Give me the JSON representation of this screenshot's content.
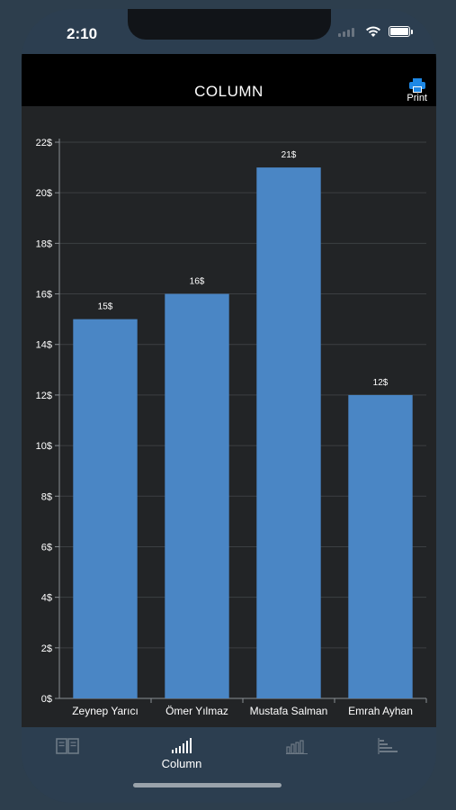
{
  "status_bar": {
    "time": "2:10"
  },
  "nav": {
    "title": "COLUMN",
    "print_label": "Print"
  },
  "colors": {
    "bar": "#4a86c5",
    "grid": "#3c3f42",
    "text": "#ffffff",
    "nav_bg": "#000000",
    "tab_bg": "#2c3e50"
  },
  "chart_data": {
    "type": "bar",
    "categories": [
      "Zeynep Yarıcı",
      "Ömer Yılmaz",
      "Mustafa Salman",
      "Emrah Ayhan"
    ],
    "values": [
      15,
      16,
      21,
      12
    ],
    "data_labels": [
      "15$",
      "16$",
      "21$",
      "12$"
    ],
    "yticks": [
      0,
      2,
      4,
      6,
      8,
      10,
      12,
      14,
      16,
      18,
      20,
      22
    ],
    "ytick_labels": [
      "0$",
      "2$",
      "4$",
      "6$",
      "8$",
      "10$",
      "12$",
      "14$",
      "16$",
      "18$",
      "20$",
      "22$"
    ],
    "ylim": [
      0,
      22
    ],
    "grid": true,
    "title": "",
    "xlabel": "",
    "ylabel": ""
  },
  "tabs": [
    {
      "icon": "book-icon",
      "label": ""
    },
    {
      "icon": "column-chart-icon",
      "label": "Column"
    },
    {
      "icon": "bar-chart-icon",
      "label": ""
    },
    {
      "icon": "horizontal-bar-icon",
      "label": ""
    }
  ]
}
